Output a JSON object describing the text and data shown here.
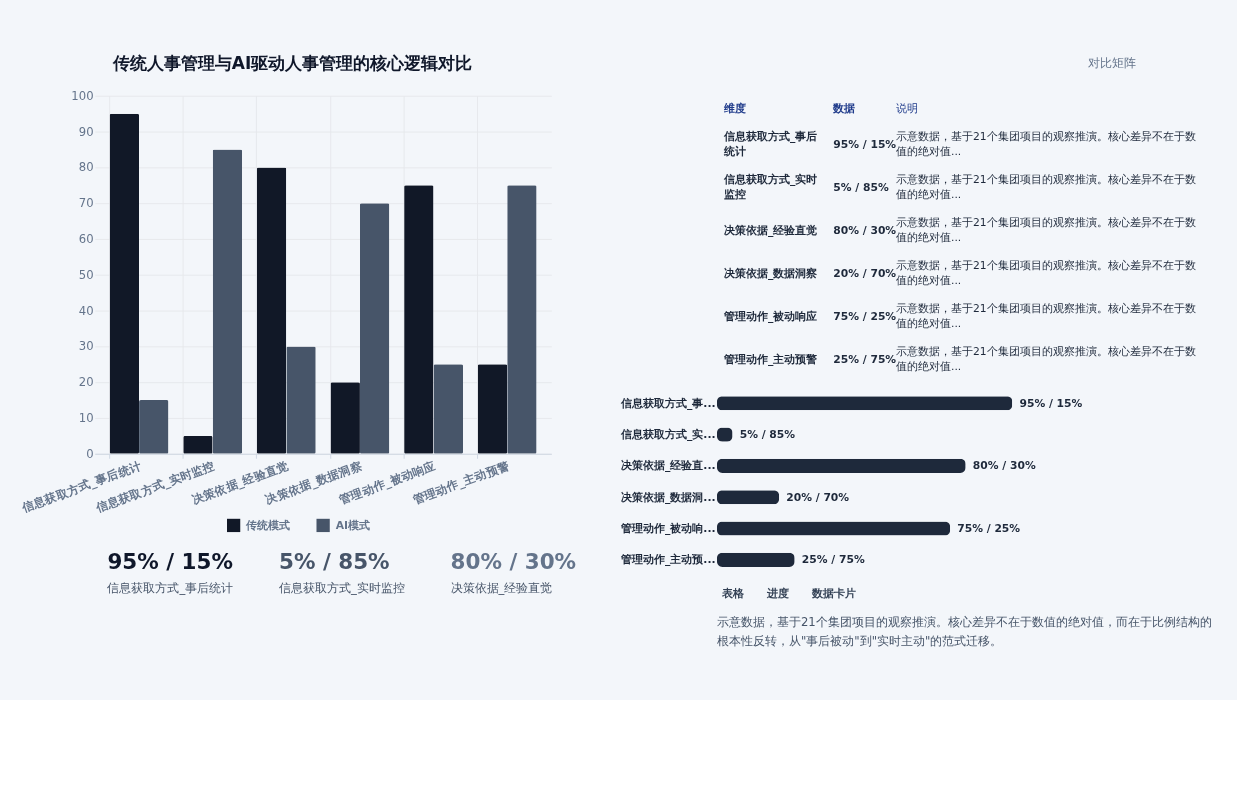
{
  "chart_data": [
    {
      "type": "other",
      "title": "传统人事管理与AI驱动人事管理的核心逻辑对比",
      "annotations": [
        "对比矩阵"
      ]
    },
    {
      "type": "bar",
      "categories": [
        "信息获取方式_事后统计",
        "信息获取方式_实时监控",
        "决策依据_经验直觉",
        "决策依据_数据洞察",
        "管理动作_被动响应",
        "管理动作_主动预警"
      ],
      "series": [
        {
          "name": "传统模式",
          "color": "#111827",
          "values": [
            95,
            5,
            80,
            20,
            75,
            25
          ]
        },
        {
          "name": "AI模式",
          "color": "#475569",
          "values": [
            15,
            85,
            30,
            70,
            25,
            75
          ]
        }
      ],
      "ylim": [
        0,
        100
      ],
      "yticks": [
        0,
        10,
        20,
        30,
        40,
        50,
        60,
        70,
        80,
        90,
        100
      ],
      "grid": true,
      "legend": "bottom"
    },
    {
      "type": "other",
      "annotations": [
        "维度",
        "数据",
        "说明",
        "信息获取方式_事后统计",
        "95% / 15%",
        "示意数据，基于21个集团项目的观察推演。核心差异不在于数值的绝对值...",
        "信息获取方式_实时监控",
        "5% / 85%",
        "示意数据，基于21个集团项目的观察推演。核心差异不在于数值的绝对值...",
        "决策依据_经验直觉",
        "80% / 30%",
        "示意数据，基于21个集团项目的观察推演。核心差异不在于数值的绝对值...",
        "决策依据_数据洞察",
        "20% / 70%",
        "示意数据，基于21个集团项目的观察推演。核心差异不在于数值的绝对值...",
        "管理动作_被动响应",
        "75% / 25%",
        "示意数据，基于21个集团项目的观察推演。核心差异不在于数值的绝对值...",
        "管理动作_主动预警",
        "25% / 75%",
        "示意数据，基于21个集团项目的观察推演。核心差异不在于数值的绝对值..."
      ]
    },
    {
      "type": "bar",
      "orientation": "horizontal",
      "categories": [
        "信息获取方式_事...",
        "信息获取方式_实...",
        "决策依据_经验直...",
        "决策依据_数据洞...",
        "管理动作_被动响...",
        "管理动作_主动预..."
      ],
      "values": [
        95,
        5,
        80,
        20,
        75,
        25
      ],
      "color": "#1e293b",
      "tick_labels": "y",
      "value_labels": [
        "95% / 15%",
        "5% / 85%",
        "80% / 30%",
        "20% / 70%",
        "75% / 25%",
        "25% / 75%"
      ]
    },
    {
      "type": "other",
      "annotations": [
        "95% / 15%",
        "信息获取方式_事后统计",
        "5% / 85%",
        "信息获取方式_实时监控",
        "80% / 30%",
        "决策依据_经验直觉"
      ],
      "colors": [
        "#0f172a",
        "#475569",
        "#64748b"
      ]
    },
    {
      "type": "other",
      "annotations": [
        "表格",
        "进度",
        "数据卡片",
        "示意数据，基于21个集团项目的观察推演。核心差异不在于数值的绝对值，而在于比例结构的根本性反转，从\"事后被动\"到\"实时主动\"的范式迁移。"
      ]
    }
  ]
}
